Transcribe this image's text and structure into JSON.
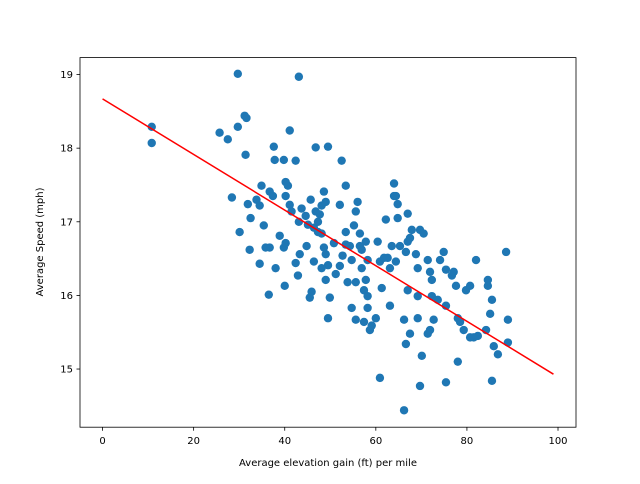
{
  "chart_data": {
    "type": "scatter",
    "xlabel": "Average elevation gain (ft) per mile",
    "ylabel": "Average Speed (mph)",
    "xlim": [
      -4.95,
      103.95
    ],
    "ylim": [
      14.21,
      19.23
    ],
    "xticks": [
      0,
      20,
      40,
      60,
      80,
      100
    ],
    "yticks": [
      15,
      16,
      17,
      18,
      19
    ],
    "series": [
      {
        "type": "scatter",
        "color": "#1f77b4",
        "x": [
          10.8,
          10.8,
          25.7,
          27.5,
          29.7,
          31.2,
          31.6,
          29.7,
          43.1,
          31.4,
          37.6,
          41.1,
          42.4,
          46.8,
          52.5,
          49.5,
          37.8,
          39.8,
          28.4,
          32.5,
          34.9,
          36.7,
          37.4,
          33.8,
          34.5,
          31.9,
          35.4,
          38.9,
          39.8,
          36.7,
          34.5,
          36.5,
          40.0,
          42.4,
          42.9,
          40.2,
          41.1,
          40.2,
          40.7,
          40.2,
          41.5,
          43.1,
          43.7,
          44.6,
          45.1,
          45.7,
          46.8,
          47.3,
          46.4,
          47.3,
          47.7,
          48.6,
          48.1,
          49.0,
          48.1,
          49.0,
          49.5,
          49.0,
          48.1,
          49.9,
          49.5,
          45.5,
          43.3,
          44.8,
          52.1,
          53.4,
          53.4,
          53.4,
          52.7,
          54.3,
          54.7,
          55.2,
          55.6,
          56.0,
          56.5,
          56.9,
          56.9,
          57.8,
          58.2,
          57.8,
          55.6,
          53.8,
          54.7,
          55.6,
          56.5,
          57.4,
          58.2,
          57.4,
          58.2,
          58.7,
          59.1,
          60.9,
          60.4,
          61.3,
          61.8,
          63.1,
          63.5,
          62.6,
          63.1,
          62.2,
          64.0,
          64.0,
          64.8,
          64.8,
          65.3,
          64.4,
          67.0,
          67.0,
          66.6,
          67.0,
          67.5,
          67.9,
          69.2,
          68.8,
          69.7,
          69.2,
          66.2,
          66.6,
          67.5,
          70.5,
          71.4,
          71.9,
          72.3,
          72.3,
          72.7,
          74.1,
          74.9,
          75.4,
          75.4,
          76.7,
          77.1,
          77.6,
          78.0,
          78.5,
          79.8,
          79.3,
          81.5,
          84.2,
          84.6,
          85.5,
          85.1,
          85.9,
          75.4,
          71.4,
          70.1,
          71.9,
          69.2,
          60.0,
          60.9,
          66.2,
          69.7,
          82.4,
          78.0,
          82.0,
          84.6,
          88.6,
          80.7,
          64.4,
          45.9,
          30.1,
          32.3,
          35.8,
          38.0,
          46.4,
          48.6,
          50.8,
          51.2,
          52.1,
          73.6,
          85.5,
          86.8,
          89.0,
          89.0,
          80.7
        ],
        "values": [
          18.29,
          18.07,
          18.21,
          18.12,
          18.29,
          18.44,
          18.41,
          19.01,
          18.97,
          17.91,
          18.02,
          18.24,
          17.83,
          18.01,
          17.83,
          18.02,
          17.84,
          17.84,
          17.33,
          17.05,
          17.49,
          17.41,
          17.35,
          17.3,
          17.22,
          17.24,
          16.95,
          16.81,
          16.65,
          16.65,
          16.43,
          16.01,
          16.13,
          16.44,
          16.27,
          16.71,
          17.23,
          17.35,
          17.49,
          17.54,
          17.14,
          17.0,
          17.18,
          17.08,
          16.96,
          17.3,
          17.14,
          17.0,
          16.92,
          16.86,
          17.1,
          17.41,
          17.22,
          17.27,
          16.84,
          16.56,
          16.41,
          16.21,
          16.37,
          15.97,
          15.69,
          15.97,
          16.56,
          16.67,
          17.23,
          17.49,
          16.86,
          16.69,
          16.54,
          16.67,
          16.48,
          16.95,
          17.14,
          17.27,
          16.84,
          16.62,
          16.37,
          16.21,
          16.48,
          16.73,
          16.18,
          16.18,
          15.83,
          15.67,
          16.67,
          16.07,
          15.99,
          15.64,
          15.83,
          15.53,
          15.59,
          16.46,
          16.73,
          16.1,
          16.51,
          15.86,
          16.67,
          16.51,
          16.37,
          17.03,
          17.35,
          17.52,
          17.24,
          17.05,
          16.67,
          17.35,
          17.11,
          16.73,
          16.59,
          16.07,
          16.78,
          16.89,
          15.99,
          16.56,
          16.89,
          16.37,
          15.67,
          15.34,
          15.48,
          16.84,
          16.48,
          16.32,
          15.99,
          16.21,
          15.67,
          16.48,
          16.59,
          16.35,
          15.86,
          16.27,
          16.32,
          16.13,
          15.69,
          15.64,
          16.07,
          15.53,
          15.43,
          15.53,
          16.13,
          15.94,
          15.75,
          15.31,
          14.82,
          15.48,
          15.18,
          15.53,
          15.69,
          15.69,
          14.88,
          14.44,
          14.77,
          15.45,
          15.1,
          16.48,
          16.21,
          16.59,
          16.13,
          16.46,
          16.05,
          16.86,
          16.62,
          16.65,
          16.37,
          16.46,
          16.65,
          16.71,
          16.29,
          16.4,
          15.94,
          14.84,
          15.2,
          15.67,
          15.36,
          15.43
        ]
      },
      {
        "type": "line",
        "color": "red",
        "x": [
          0,
          99
        ],
        "values": [
          18.67,
          14.93
        ]
      }
    ]
  }
}
